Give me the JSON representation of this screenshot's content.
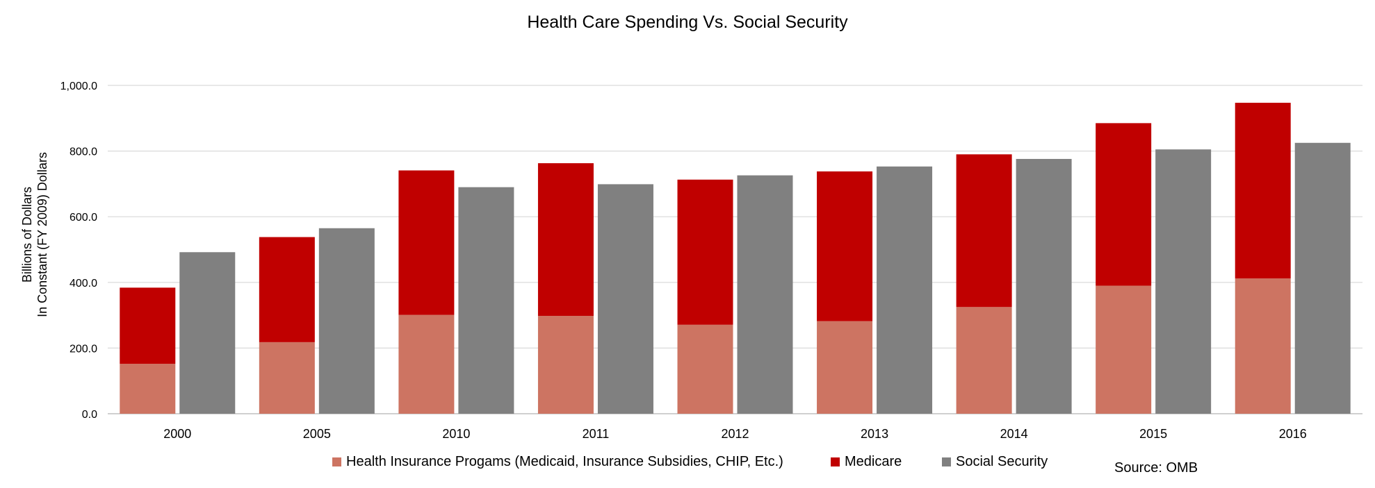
{
  "chart_data": {
    "type": "bar",
    "title": "Health Care Spending Vs. Social Security",
    "ylabel_line1": "Billions of Dollars",
    "ylabel_line2": "In Constant (FY 2009) Dollars",
    "xlabel": "",
    "ylim": [
      0,
      1000
    ],
    "yticks": [
      "0.0",
      "200.0",
      "400.0",
      "600.0",
      "800.0",
      "1,000.0"
    ],
    "ytick_values": [
      0,
      200,
      400,
      600,
      800,
      1000
    ],
    "grid": true,
    "legend_placement": "bottom",
    "categories": [
      "2000",
      "2005",
      "2010",
      "2011",
      "2012",
      "2013",
      "2014",
      "2015",
      "2016"
    ],
    "stacked_groups": [
      {
        "stack": "health-care",
        "series": [
          {
            "name": "Health Insurance Progams (Medicaid, Insurance Subsidies, CHIP, Etc.)",
            "color": "#cd7462",
            "values": [
              152,
              218,
              301,
              298,
              271,
              282,
              325,
              390,
              412
            ]
          },
          {
            "name": "Medicare",
            "color": "#c00000",
            "values": [
              232,
              320,
              440,
              465,
              442,
              456,
              465,
              495,
              535
            ]
          }
        ]
      },
      {
        "stack": "social-security",
        "series": [
          {
            "name": "Social Security",
            "color": "#808080",
            "values": [
              492,
              565,
              690,
              699,
              726,
              753,
              776,
              805,
              825
            ]
          }
        ]
      }
    ],
    "source_note": "Source: OMB"
  },
  "legend": {
    "items": [
      {
        "label": "Health Insurance Progams (Medicaid, Insurance Subsidies, CHIP, Etc.)",
        "color": "#cd7462"
      },
      {
        "label": "Medicare",
        "color": "#c00000"
      },
      {
        "label": "Social Security",
        "color": "#808080"
      }
    ]
  },
  "source": "Source: OMB"
}
